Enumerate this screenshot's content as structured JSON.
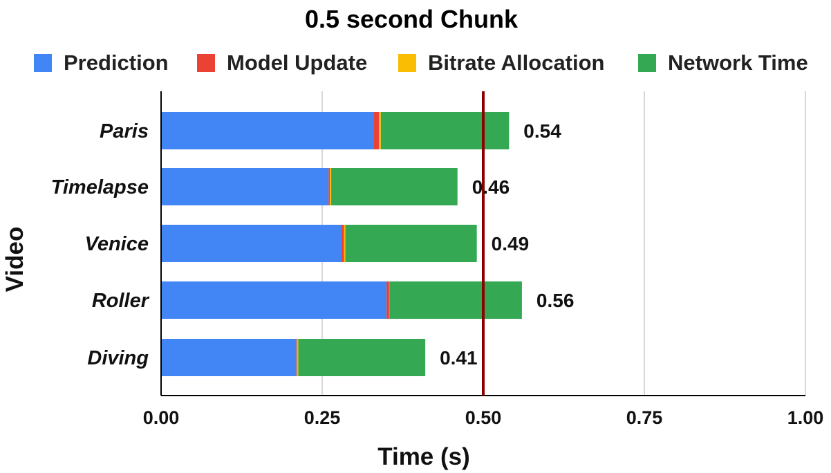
{
  "chart_data": {
    "type": "bar",
    "orientation": "horizontal",
    "stacked": true,
    "title": "0.5 second Chunk",
    "xlabel": "Time (s)",
    "ylabel": "Video",
    "categories": [
      "Paris",
      "Timelapse",
      "Venice",
      "Roller",
      "Diving"
    ],
    "series": [
      {
        "name": "Prediction",
        "color": "#4285f4",
        "values": [
          0.33,
          0.26,
          0.28,
          0.35,
          0.21
        ]
      },
      {
        "name": "Model Update",
        "color": "#ea4335",
        "values": [
          0.008,
          0.002,
          0.004,
          0.004,
          0.001
        ]
      },
      {
        "name": "Bitrate Allocation",
        "color": "#fbbc04",
        "values": [
          0.003,
          0.002,
          0.002,
          0.0005,
          0.002
        ]
      },
      {
        "name": "Network Time",
        "color": "#34a853",
        "values": [
          0.199,
          0.196,
          0.204,
          0.2055,
          0.197
        ]
      }
    ],
    "totals": [
      "0.54",
      "0.46",
      "0.49",
      "0.56",
      "0.41"
    ],
    "xlim": [
      0,
      1
    ],
    "xticks": [
      "0.00",
      "0.25",
      "0.50",
      "0.75",
      "1.00"
    ],
    "reference_line": {
      "x": 0.5,
      "color": "#8b0000"
    },
    "grid": "vertical",
    "legend_position": "top"
  }
}
